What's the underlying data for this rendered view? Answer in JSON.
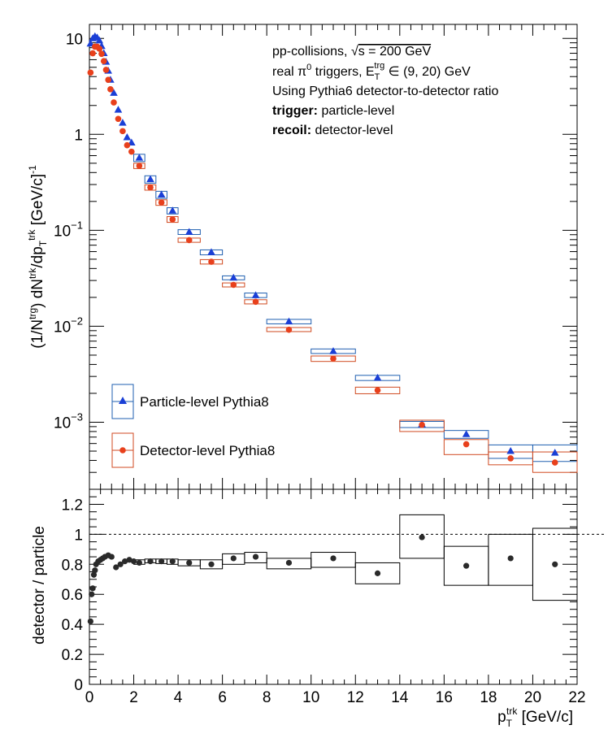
{
  "chart_data": [
    {
      "type": "scatter",
      "panel": "top",
      "ylabel_parts": {
        "lead": "(1/N",
        "sup1": "trg",
        "mid1": ") dN",
        "sup2": "trk",
        "mid2": "/dp",
        "sub": "T",
        "sup3": "trk",
        "tail": " [GeV/c]",
        "sup4": "-1"
      },
      "yscale": "log",
      "xlim": [
        0,
        22
      ],
      "ylim": [
        0.0002,
        14
      ],
      "y_ticks": [
        {
          "v": 10,
          "m": "10",
          "e": ""
        },
        {
          "v": 1,
          "m": "1",
          "e": ""
        },
        {
          "v": 0.1,
          "m": "10",
          "e": "−1"
        },
        {
          "v": 0.01,
          "m": "10",
          "e": "−2"
        },
        {
          "v": 0.001,
          "m": "10",
          "e": "−3"
        }
      ],
      "annotations": {
        "line1_a": "pp-collisions, ",
        "line1_sqrt": "√",
        "line1_b": "s = 200 GeV",
        "line2_a": "real π",
        "line2_sup0": "0",
        "line2_b": " triggers, E",
        "line2_sub": "T",
        "line2_sup": "trg",
        "line2_c": " ∈ (9, 20) GeV",
        "line3": "Using Pythia6 detector-to-detector ratio",
        "line4_bold": "trigger:",
        "line4_rest": " particle-level",
        "line5_bold": "recoil:",
        "line5_rest": " detector-level"
      },
      "legend": {
        "placement": "bottom-left",
        "entries": [
          "Particle-level Pythia8",
          "Detector-level Pythia8"
        ]
      },
      "series": [
        {
          "name": "Particle-level Pythia8",
          "marker": "triangle",
          "color": "#1a3fd6",
          "box_color": "#1f5fb0",
          "points": [
            [
              0.05,
              8.8
            ],
            [
              0.15,
              10.0
            ],
            [
              0.25,
              10.5
            ],
            [
              0.35,
              10.2
            ],
            [
              0.45,
              9.5
            ],
            [
              0.55,
              8.3
            ],
            [
              0.65,
              7.0
            ],
            [
              0.75,
              5.7
            ],
            [
              0.85,
              4.6
            ],
            [
              0.95,
              3.7
            ],
            [
              1.1,
              2.7
            ],
            [
              1.3,
              1.8
            ],
            [
              1.5,
              1.32
            ],
            [
              1.7,
              0.93
            ],
            [
              1.9,
              0.82
            ],
            [
              2.25,
              0.57
            ],
            [
              2.75,
              0.34
            ],
            [
              3.25,
              0.235
            ],
            [
              3.75,
              0.16
            ],
            [
              4.5,
              0.096
            ],
            [
              5.5,
              0.059
            ],
            [
              6.5,
              0.032
            ],
            [
              7.5,
              0.021
            ],
            [
              9,
              0.0112
            ],
            [
              11,
              0.0055
            ],
            [
              13,
              0.0029
            ],
            [
              15,
              0.00095
            ],
            [
              17,
              0.00075
            ],
            [
              19,
              0.0005
            ],
            [
              21,
              0.00048
            ]
          ],
          "syst_boxes": [
            [
              2.0,
              2.5,
              0.52,
              0.62
            ],
            [
              2.5,
              3.0,
              0.31,
              0.37
            ],
            [
              3.0,
              3.5,
              0.215,
              0.255
            ],
            [
              3.5,
              4.0,
              0.148,
              0.172
            ],
            [
              4.0,
              5.0,
              0.0905,
              0.1015
            ],
            [
              5.0,
              6.0,
              0.0555,
              0.0625
            ],
            [
              6.0,
              7.0,
              0.0305,
              0.0335
            ],
            [
              7.0,
              8.0,
              0.0199,
              0.0222
            ],
            [
              8.0,
              10.0,
              0.0106,
              0.0118
            ],
            [
              10.0,
              12.0,
              0.0052,
              0.0058
            ],
            [
              12.0,
              14.0,
              0.00272,
              0.00308
            ],
            [
              14.0,
              16.0,
              0.00088,
              0.00102
            ],
            [
              16.0,
              18.0,
              0.00068,
              0.00082
            ],
            [
              18.0,
              20.0,
              0.00042,
              0.00058
            ],
            [
              20.0,
              22.0,
              0.00039,
              0.00058
            ]
          ]
        },
        {
          "name": "Detector-level Pythia8",
          "marker": "circle",
          "color": "#e8401c",
          "box_color": "#d04a20",
          "points": [
            [
              0.05,
              4.4
            ],
            [
              0.15,
              7.0
            ],
            [
              0.25,
              8.2
            ],
            [
              0.35,
              8.2
            ],
            [
              0.45,
              7.8
            ],
            [
              0.55,
              6.9
            ],
            [
              0.65,
              5.8
            ],
            [
              0.75,
              4.7
            ],
            [
              0.85,
              3.7
            ],
            [
              0.95,
              2.95
            ],
            [
              1.1,
              2.15
            ],
            [
              1.3,
              1.45
            ],
            [
              1.5,
              1.08
            ],
            [
              1.7,
              0.77
            ],
            [
              1.9,
              0.66
            ],
            [
              2.25,
              0.47
            ],
            [
              2.75,
              0.28
            ],
            [
              3.25,
              0.195
            ],
            [
              3.75,
              0.13
            ],
            [
              4.5,
              0.079
            ],
            [
              5.5,
              0.047
            ],
            [
              6.5,
              0.027
            ],
            [
              7.5,
              0.018
            ],
            [
              9,
              0.0092
            ],
            [
              11,
              0.0046
            ],
            [
              13,
              0.00215
            ],
            [
              15,
              0.00094
            ],
            [
              17,
              0.00059
            ],
            [
              19,
              0.00042
            ],
            [
              21,
              0.00038
            ]
          ],
          "syst_boxes": [
            [
              2.0,
              2.5,
              0.44,
              0.5
            ],
            [
              2.5,
              3.0,
              0.262,
              0.298
            ],
            [
              3.0,
              3.5,
              0.182,
              0.208
            ],
            [
              3.5,
              4.0,
              0.121,
              0.139
            ],
            [
              4.0,
              5.0,
              0.075,
              0.083
            ],
            [
              5.0,
              6.0,
              0.0445,
              0.0495
            ],
            [
              6.0,
              7.0,
              0.0257,
              0.0283
            ],
            [
              7.0,
              8.0,
              0.0171,
              0.0189
            ],
            [
              8.0,
              10.0,
              0.0088,
              0.0097
            ],
            [
              10.0,
              12.0,
              0.0043,
              0.0049
            ],
            [
              12.0,
              14.0,
              0.00198,
              0.00232
            ],
            [
              14.0,
              16.0,
              0.0008,
              0.00105
            ],
            [
              16.0,
              18.0,
              0.00046,
              0.00066
            ],
            [
              18.0,
              20.0,
              0.00036,
              0.00049
            ],
            [
              20.0,
              22.0,
              0.0003,
              0.00049
            ]
          ]
        }
      ]
    },
    {
      "type": "scatter",
      "panel": "bottom",
      "ylabel": "detector / particle",
      "xlabel_parts": {
        "lead": "p",
        "sub": "T",
        "sup": "trk",
        "tail": " [GeV/c]"
      },
      "xlim": [
        0,
        22
      ],
      "ylim": [
        0,
        1.3
      ],
      "x_ticks": [
        "0",
        "2",
        "4",
        "6",
        "8",
        "10",
        "12",
        "14",
        "16",
        "18",
        "20",
        "22"
      ],
      "y_ticks": [
        "0",
        "0.2",
        "0.4",
        "0.6",
        "0.8",
        "1",
        "1.2"
      ],
      "reference_line": 1,
      "points": [
        [
          0.05,
          0.42
        ],
        [
          0.1,
          0.6
        ],
        [
          0.15,
          0.64
        ],
        [
          0.2,
          0.73
        ],
        [
          0.25,
          0.76
        ],
        [
          0.3,
          0.8
        ],
        [
          0.4,
          0.82
        ],
        [
          0.5,
          0.83
        ],
        [
          0.6,
          0.84
        ],
        [
          0.7,
          0.85
        ],
        [
          0.85,
          0.86
        ],
        [
          1.0,
          0.85
        ],
        [
          1.2,
          0.78
        ],
        [
          1.4,
          0.8
        ],
        [
          1.6,
          0.82
        ],
        [
          1.8,
          0.83
        ],
        [
          2.0,
          0.82
        ],
        [
          2.25,
          0.81
        ],
        [
          2.75,
          0.82
        ],
        [
          3.25,
          0.82
        ],
        [
          3.75,
          0.82
        ],
        [
          4.5,
          0.81
        ],
        [
          5.5,
          0.8
        ],
        [
          6.5,
          0.84
        ],
        [
          7.5,
          0.85
        ],
        [
          9,
          0.81
        ],
        [
          11,
          0.84
        ],
        [
          13,
          0.74
        ],
        [
          15,
          0.98
        ],
        [
          17,
          0.79
        ],
        [
          19,
          0.84
        ],
        [
          21,
          0.8
        ]
      ],
      "syst_boxes": [
        [
          2.0,
          2.5,
          0.8,
          0.83
        ],
        [
          2.5,
          3.0,
          0.81,
          0.835
        ],
        [
          3.0,
          3.5,
          0.805,
          0.835
        ],
        [
          3.5,
          4.0,
          0.8,
          0.835
        ],
        [
          4.0,
          5.0,
          0.79,
          0.83
        ],
        [
          5.0,
          6.0,
          0.77,
          0.83
        ],
        [
          6.0,
          7.0,
          0.8,
          0.87
        ],
        [
          7.0,
          8.0,
          0.81,
          0.88
        ],
        [
          8.0,
          10.0,
          0.77,
          0.84
        ],
        [
          10.0,
          12.0,
          0.78,
          0.88
        ],
        [
          12.0,
          14.0,
          0.67,
          0.81
        ],
        [
          14.0,
          16.0,
          0.84,
          1.13
        ],
        [
          16.0,
          18.0,
          0.66,
          0.92
        ],
        [
          18.0,
          20.0,
          0.66,
          1.0
        ],
        [
          20.0,
          22.0,
          0.56,
          1.04
        ]
      ]
    }
  ]
}
